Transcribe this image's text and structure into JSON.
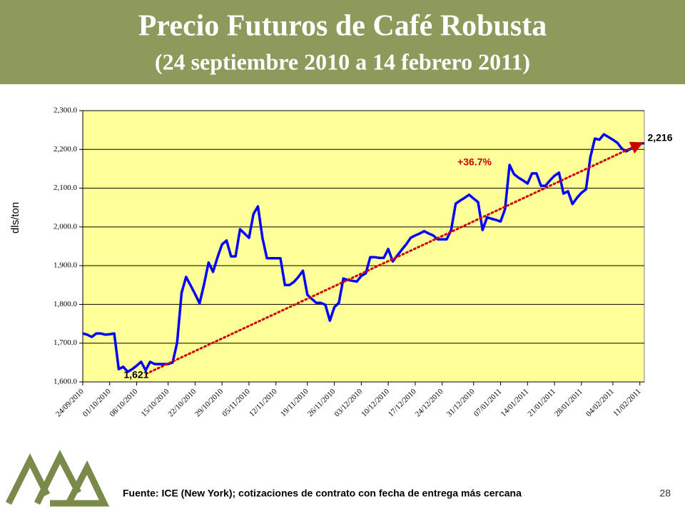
{
  "chart_data": {
    "type": "line",
    "title": "Precio Futuros de Café Robusta",
    "subtitle": "(24 septiembre 2010 a 14 febrero 2011)",
    "y_label": "dls/ton",
    "color": "#0000ff",
    "grid": true,
    "ylim": [
      1600,
      2300
    ],
    "yticks": [
      {
        "value": 1600,
        "label": "1,600.0"
      },
      {
        "value": 1700,
        "label": "1,700.0"
      },
      {
        "value": 1800,
        "label": "1,800.0"
      },
      {
        "value": 1900,
        "label": "1,900.0"
      },
      {
        "value": 2000,
        "label": "2,000.0"
      },
      {
        "value": 2100,
        "label": "2,100.0"
      },
      {
        "value": 2200,
        "label": "2,200.0"
      },
      {
        "value": 2300,
        "label": "2,300.0"
      }
    ],
    "categories": [
      "24/09/2010",
      null,
      null,
      null,
      null,
      null,
      "01/10/2010",
      null,
      null,
      null,
      null,
      null,
      "08/10/2010",
      null,
      null,
      null,
      null,
      null,
      null,
      "15/10/2010",
      null,
      null,
      null,
      null,
      null,
      "22/10/2010",
      null,
      null,
      null,
      null,
      null,
      "29/10/2010",
      null,
      null,
      null,
      null,
      null,
      "05/11/2010",
      null,
      null,
      null,
      null,
      null,
      "12/11/2010",
      null,
      null,
      null,
      null,
      null,
      null,
      "19/11/2010",
      null,
      null,
      null,
      null,
      null,
      "26/11/2010",
      null,
      null,
      null,
      null,
      null,
      "03/12/2010",
      null,
      null,
      null,
      null,
      null,
      "10/12/2010",
      null,
      null,
      null,
      null,
      null,
      "17/12/2010",
      null,
      null,
      null,
      null,
      null,
      "24/12/2010",
      null,
      null,
      null,
      null,
      null,
      null,
      "31/12/2010",
      null,
      null,
      null,
      null,
      null,
      "07/01/2011",
      null,
      null,
      null,
      null,
      null,
      "14/01/2011",
      null,
      null,
      null,
      null,
      null,
      "21/01/2011",
      null,
      null,
      null,
      null,
      null,
      "28/01/2011",
      null,
      null,
      null,
      null,
      null,
      null,
      "04/02/2011",
      null,
      null,
      null,
      null,
      null,
      "11/02/2011",
      null
    ],
    "values": [
      1725,
      1722,
      1716,
      1725,
      1725,
      1722,
      1723,
      1725,
      1633,
      1639,
      1626,
      1633,
      1642,
      1652,
      1630,
      1652,
      1646,
      1646,
      1646,
      1646,
      1650,
      1701,
      1830,
      1871,
      1849,
      1827,
      1803,
      1852,
      1908,
      1884,
      1922,
      1955,
      1965,
      1924,
      1924,
      1994,
      1983,
      1972,
      2033,
      2053,
      1972,
      1919,
      1919,
      1919,
      1919,
      1850,
      1850,
      1858,
      1871,
      1887,
      1825,
      1814,
      1804,
      1804,
      1799,
      1758,
      1793,
      1804,
      1867,
      1863,
      1861,
      1859,
      1874,
      1880,
      1922,
      1922,
      1920,
      1920,
      1943,
      1911,
      1926,
      1941,
      1955,
      1972,
      1978,
      1983,
      1989,
      1983,
      1978,
      1968,
      1968,
      1968,
      1992,
      2060,
      2068,
      2075,
      2083,
      2073,
      2064,
      1992,
      2025,
      2021,
      2018,
      2014,
      2046,
      2160,
      2136,
      2127,
      2120,
      2112,
      2138,
      2138,
      2106,
      2106,
      2120,
      2132,
      2140,
      2086,
      2092,
      2059,
      2075,
      2088,
      2097,
      2180,
      2228,
      2225,
      2239,
      2232,
      2225,
      2217,
      2202,
      2195,
      2202,
      2210,
      2215,
      2216
    ],
    "trend": {
      "values": [
        1621,
        2216
      ],
      "value_labels": [
        "1,621",
        "2,216"
      ],
      "label": "+36.7%",
      "color": "#cc0000"
    }
  },
  "footer": {
    "source": "Fuente: ICE (New York); cotizaciones de contrato con fecha de entrega más cercana",
    "page": "28"
  }
}
